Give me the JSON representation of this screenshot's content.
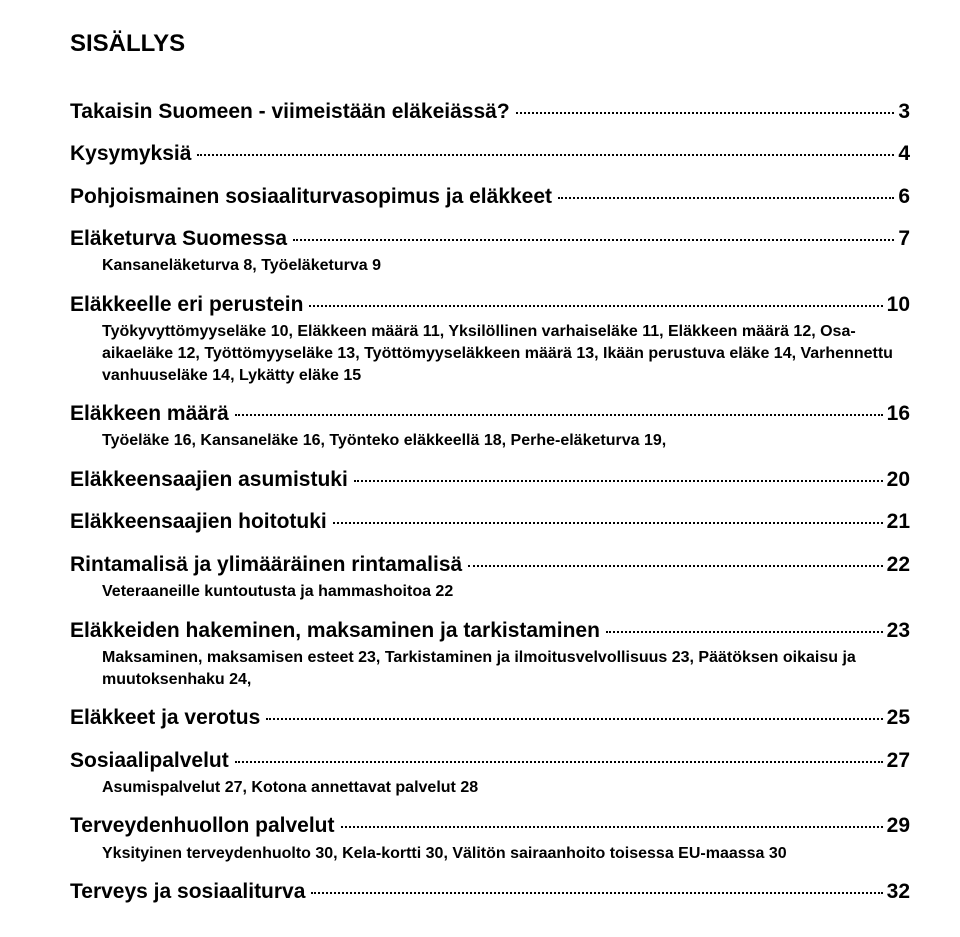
{
  "title": "SISÄLLYS",
  "entries": [
    {
      "level": 1,
      "bold": true,
      "label": "Takaisin Suomeen - viimeistään eläkeiässä?",
      "page": "3",
      "first": true
    },
    {
      "level": 1,
      "bold": true,
      "label": "Kysymyksiä",
      "page": "4"
    },
    {
      "level": 1,
      "bold": true,
      "label": "Pohjoismainen sosiaaliturvasopimus ja eläkkeet",
      "page": "6"
    },
    {
      "level": 1,
      "bold": true,
      "label": "Eläketurva Suomessa",
      "page": "7"
    },
    {
      "sub": true,
      "text": "Kansaneläketurva 8, Työeläketurva 9"
    },
    {
      "level": 1,
      "bold": true,
      "label": "Eläkkeelle eri perustein",
      "page": "10"
    },
    {
      "sub": true,
      "text": "Työkyvyttömyyseläke 10, Eläkkeen määrä 11, Yksilöllinen varhaiseläke 11, Eläkkeen määrä 12, Osa-aikaeläke 12, Työttömyyseläke 13, Työttömyyseläkkeen määrä 13, Ikään perustuva eläke 14, Varhennettu vanhuuseläke 14, Lykätty eläke 15"
    },
    {
      "level": 1,
      "bold": true,
      "label": "Eläkkeen määrä",
      "page": "16"
    },
    {
      "sub": true,
      "text": "Työeläke 16, Kansaneläke 16, Työnteko eläkkeellä 18, Perhe-eläketurva 19,"
    },
    {
      "level": 1,
      "bold": true,
      "label": "Eläkkeensaajien asumistuki",
      "page": "20"
    },
    {
      "level": 1,
      "bold": true,
      "label": "Eläkkeensaajien hoitotuki",
      "page": "21"
    },
    {
      "level": 1,
      "bold": true,
      "label": "Rintamalisä ja ylimääräinen rintamalisä",
      "page": "22"
    },
    {
      "sub": true,
      "text": "Veteraaneille kuntoutusta ja hammashoitoa 22"
    },
    {
      "level": 1,
      "bold": true,
      "label": "Eläkkeiden hakeminen, maksaminen ja tarkistaminen",
      "page": "23"
    },
    {
      "sub": true,
      "text": "Maksaminen, maksamisen esteet 23, Tarkistaminen ja ilmoitusvelvollisuus 23, Päätöksen oikaisu ja muutoksenhaku 24,"
    },
    {
      "level": 1,
      "bold": true,
      "label": "Eläkkeet ja verotus",
      "page": "25"
    },
    {
      "level": 1,
      "bold": true,
      "label": "Sosiaalipalvelut",
      "page": "27"
    },
    {
      "sub": true,
      "text": "Asumispalvelut 27, Kotona annettavat palvelut 28"
    },
    {
      "level": 1,
      "bold": true,
      "label": "Terveydenhuollon palvelut",
      "page": "29"
    },
    {
      "sub": true,
      "text": "Yksityinen terveydenhuolto 30, Kela-kortti 30, Välitön sairaanhoito toisessa EU-maassa 30"
    },
    {
      "level": 1,
      "bold": true,
      "label": "Terveys ja sosiaaliturva",
      "page": "32"
    }
  ]
}
